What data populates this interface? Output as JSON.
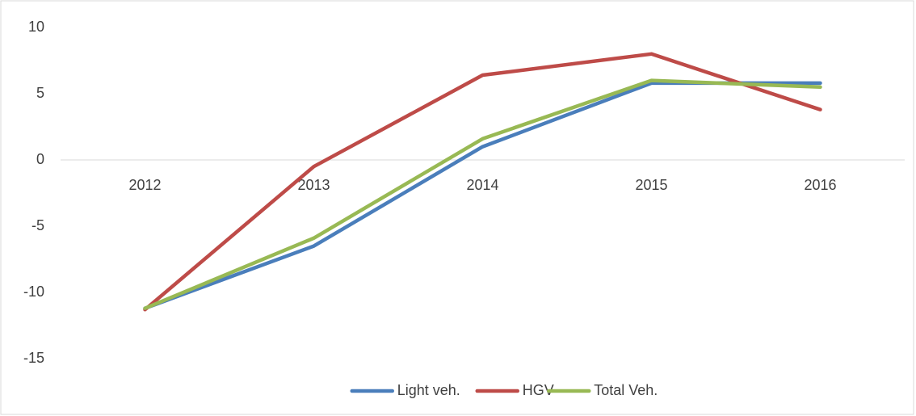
{
  "chart_data": {
    "type": "line",
    "categories": [
      "2012",
      "2013",
      "2014",
      "2015",
      "2016"
    ],
    "series": [
      {
        "name": "Light veh.",
        "color": "#4a7ebb",
        "values": [
          -11.2,
          -6.5,
          1.0,
          5.8,
          5.8
        ]
      },
      {
        "name": "HGV",
        "color": "#be4b48",
        "values": [
          -11.3,
          -0.5,
          6.4,
          8.0,
          3.8
        ]
      },
      {
        "name": "Total Veh.",
        "color": "#98b954",
        "values": [
          -11.2,
          -5.9,
          1.6,
          6.0,
          5.5
        ]
      }
    ],
    "ylim": [
      -15,
      10
    ],
    "yticks": [
      -15,
      -10,
      -5,
      0,
      5,
      10
    ],
    "grid": false,
    "legend": "bottom"
  }
}
